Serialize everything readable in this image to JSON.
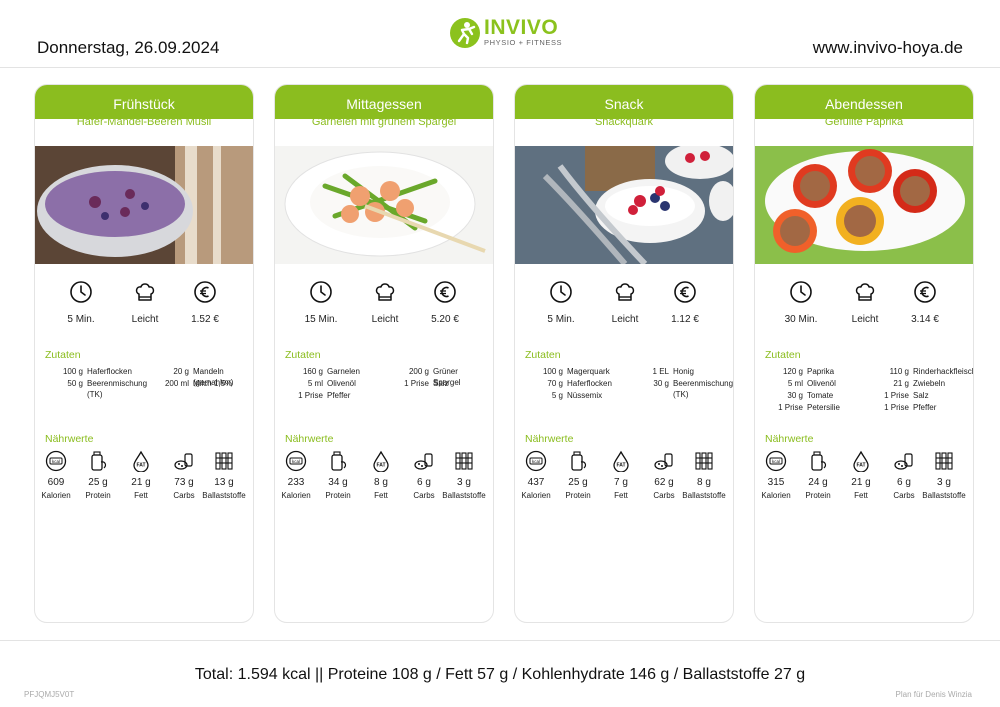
{
  "header": {
    "date": "Donnerstag, 26.09.2024",
    "website": "www.invivo-hoya.de",
    "logo_name": "INVIVO",
    "logo_sub": "PHYSIO + FITNESS",
    "brand_color": "#8bc21d"
  },
  "labels": {
    "ingredients": "Zutaten",
    "nutrition": "Nährwerte"
  },
  "meals": [
    {
      "title": "Frühstück",
      "dish": "Hafer-Mandel-Beeren Müsli",
      "time": "5 Min.",
      "difficulty": "Leicht",
      "price": "1.52 €",
      "ingredients": [
        {
          "qty": "100 g",
          "name": "Haferflocken"
        },
        {
          "qty": "20 g",
          "name": "Mandeln (gemahlen)"
        },
        {
          "qty": "50 g",
          "name": "Beerenmischung (TK)"
        },
        {
          "qty": "200 ml",
          "name": "Milch 1,5%"
        }
      ],
      "nutrition": {
        "kcal": "609",
        "protein": "25 g",
        "fat": "21 g",
        "carbs": "73 g",
        "fiber": "13 g"
      }
    },
    {
      "title": "Mittagessen",
      "dish": "Garnelen mit grünem Spargel",
      "time": "15 Min.",
      "difficulty": "Leicht",
      "price": "5.20 €",
      "ingredients": [
        {
          "qty": "160 g",
          "name": "Garnelen"
        },
        {
          "qty": "200 g",
          "name": "Grüner Spargel"
        },
        {
          "qty": "5 ml",
          "name": "Olivenöl"
        },
        {
          "qty": "1 Prise",
          "name": "Salz"
        },
        {
          "qty": "1 Prise",
          "name": "Pfeffer"
        }
      ],
      "nutrition": {
        "kcal": "233",
        "protein": "34 g",
        "fat": "8 g",
        "carbs": "6 g",
        "fiber": "3 g"
      }
    },
    {
      "title": "Snack",
      "dish": "Snackquark",
      "time": "5 Min.",
      "difficulty": "Leicht",
      "price": "1.12 €",
      "ingredients": [
        {
          "qty": "100 g",
          "name": "Magerquark"
        },
        {
          "qty": "1 EL",
          "name": "Honig"
        },
        {
          "qty": "70 g",
          "name": "Haferflocken"
        },
        {
          "qty": "30 g",
          "name": "Beerenmischung (TK)"
        },
        {
          "qty": "5 g",
          "name": "Nüssemix"
        }
      ],
      "nutrition": {
        "kcal": "437",
        "protein": "25 g",
        "fat": "7 g",
        "carbs": "62 g",
        "fiber": "8 g"
      }
    },
    {
      "title": "Abendessen",
      "dish": "Gefüllte Paprika",
      "time": "30 Min.",
      "difficulty": "Leicht",
      "price": "3.14 €",
      "ingredients": [
        {
          "qty": "120 g",
          "name": "Paprika"
        },
        {
          "qty": "110 g",
          "name": "Rinderhackfleisch"
        },
        {
          "qty": "5 ml",
          "name": "Olivenöl"
        },
        {
          "qty": "21 g",
          "name": "Zwiebeln"
        },
        {
          "qty": "30 g",
          "name": "Tomate"
        },
        {
          "qty": "1 Prise",
          "name": "Salz"
        },
        {
          "qty": "1 Prise",
          "name": "Petersilie"
        },
        {
          "qty": "1 Prise",
          "name": "Pfeffer"
        }
      ],
      "nutrition": {
        "kcal": "315",
        "protein": "24 g",
        "fat": "21 g",
        "carbs": "6 g",
        "fiber": "3 g"
      }
    }
  ],
  "nutrition_labels": {
    "kcal": "Kalorien",
    "protein": "Protein",
    "fat": "Fett",
    "carbs": "Carbs",
    "fiber": "Ballaststoffe"
  },
  "icon_text": {
    "kcal": "kcal",
    "fat": "FAT"
  },
  "footer": {
    "total": "Total: 1.594 kcal || Proteine 108 g / Fett 57 g / Kohlenhydrate 146 g / Ballaststoffe 27 g",
    "code": "PFJQMJ5V0T",
    "plan": "Plan für Denis Winzia"
  },
  "colors": {
    "accent": "#8bbd1f",
    "card_border": "#e4e4e4"
  }
}
